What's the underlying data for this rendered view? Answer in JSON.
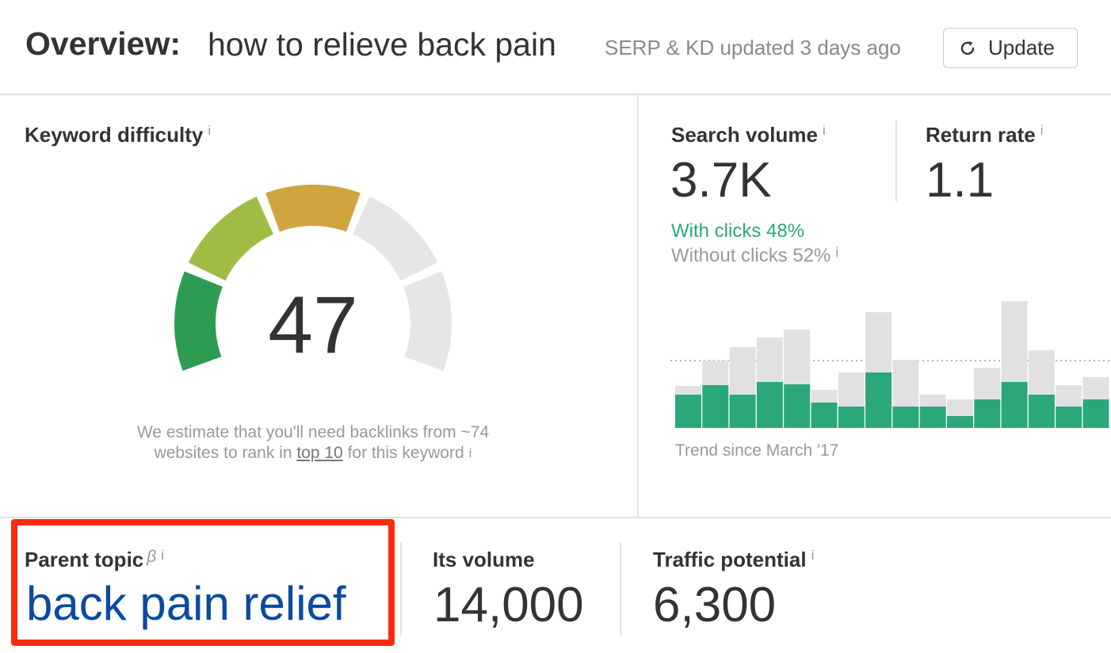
{
  "header": {
    "title_prefix": "Overview:",
    "query": "how to relieve back pain",
    "updated_text": "SERP & KD updated 3 days ago",
    "update_button": "Update",
    "update_icon": "refresh-icon"
  },
  "kd": {
    "label": "Keyword difficulty",
    "info_icon": "i",
    "value": "47",
    "gauge_fraction": 0.47,
    "note_part1": "We estimate that you'll need backlinks from ~74 websites to rank in ",
    "note_link": "top 10",
    "note_part2": " for this keyword",
    "colors": {
      "low": "#2e9b53",
      "mid": "#9fbd44",
      "high": "#d0a53e",
      "empty": "#e6e6e8"
    }
  },
  "search_volume": {
    "label": "Search volume",
    "info_icon": "i",
    "value": "3.7K",
    "with_clicks": "With clicks 48%",
    "without_clicks": "Without clicks 52%",
    "trend_label": "Trend since March '17",
    "colors": {
      "clicks": "#2ba87a",
      "total": "#e1e1e3"
    }
  },
  "return_rate": {
    "label": "Return rate",
    "info_icon": "i",
    "value": "1.1"
  },
  "parent_topic": {
    "label": "Parent topic",
    "beta": "β",
    "info_icon": "i",
    "value": "back pain relief",
    "highlight_color": "#fb2b12"
  },
  "its_volume": {
    "label": "Its volume",
    "value": "14,000"
  },
  "traffic_potential": {
    "label": "Traffic potential",
    "info_icon": "i",
    "value": "6,300"
  },
  "chart_data": {
    "type": "bar",
    "series": [
      {
        "values": [
          53,
          85,
          102,
          114,
          124,
          48,
          70,
          146,
          86,
          42,
          36,
          76,
          160,
          98,
          54,
          64
        ]
      },
      {
        "values": [
          42,
          54,
          42,
          58,
          55,
          32,
          27,
          70,
          27,
          27,
          15,
          36,
          58,
          42,
          27,
          36
        ]
      }
    ],
    "reference_line": 85
  }
}
